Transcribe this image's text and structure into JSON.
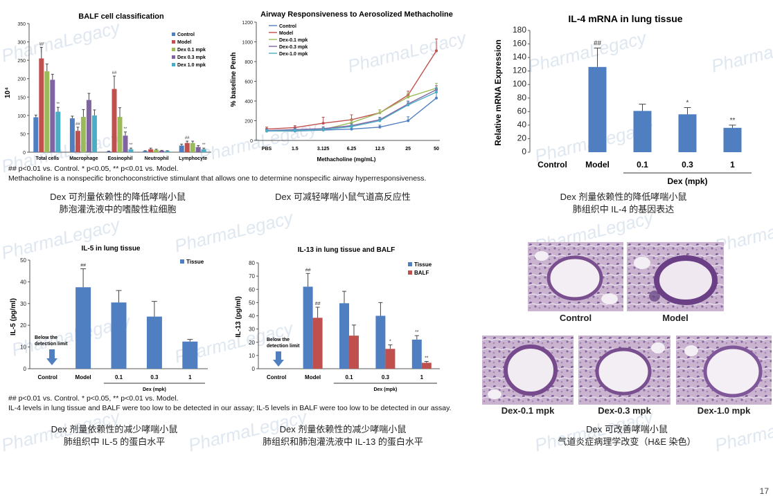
{
  "watermark": "PharmaLegacy",
  "page_number": "17",
  "notes": {
    "top_sig": "## p<0.01 vs. Control. * p<0.05, ** p<0.01 vs. Model.",
    "top_methacholine": "Methacholine is a nonspecific bronchoconstrictive stimulant that allows one to determine nonspecific airway hyperresponsiveness.",
    "bottom_sig": "## p<0.01 vs. Control. * p<0.05, ** p<0.01 vs. Model.",
    "bottom_il": "IL-4 levels in lung tissue and BALF were too low to be detected in our assay; IL-5 levels in BALF were too low to be detected in our assay."
  },
  "captions": {
    "balf": [
      "Dex 可剂量依赖性的降低哮喘小鼠",
      "肺泡灌洗液中的嗜酸性粒细胞"
    ],
    "airway": [
      "Dex 可减轻哮喘小鼠气道高反应性"
    ],
    "il4": [
      "Dex 剂量依赖性的降低哮喘小鼠",
      "肺组织中 IL-4 的基因表达"
    ],
    "il5": [
      "Dex 剂量依赖性的减少哮喘小鼠",
      "肺组织中 IL-5 的蛋白水平"
    ],
    "il13": [
      "Dex 剂量依赖性的减少哮喘小鼠",
      "肺组织和肺泡灌洗液中 IL-13 的蛋白水平"
    ],
    "histo": [
      "Dex 可改善哮喘小鼠",
      "气道炎症病理学改变（H&E 染色）"
    ]
  },
  "histology": {
    "labels": [
      "Control",
      "Model",
      "Dex-0.1 mpk",
      "Dex-0.3 mpk",
      "Dex-1.0 mpk"
    ]
  },
  "colors": {
    "control": "#4f7fc1",
    "model": "#c0504d",
    "dex01": "#9bbb59",
    "dex03": "#8064a2",
    "dex10": "#4bacc6",
    "tissue": "#4f7fc1",
    "balf": "#c0504d"
  },
  "chart_data": [
    {
      "id": "balf",
      "type": "bar",
      "title": "BALF cell classification",
      "ylabel": "10⁴",
      "ylim": [
        0,
        350
      ],
      "yticks": [
        0,
        50,
        100,
        150,
        200,
        250,
        300,
        350
      ],
      "categories": [
        "Total cells",
        "Macrophage",
        "Eosinophil",
        "Neutrophil",
        "Lymphocyte"
      ],
      "series": [
        {
          "name": "Control",
          "values": [
            95,
            92,
            2,
            3,
            18
          ],
          "err": [
            6,
            6,
            1,
            1,
            4
          ],
          "sig": [
            "",
            "",
            "",
            "",
            ""
          ]
        },
        {
          "name": "Model",
          "values": [
            255,
            58,
            172,
            8,
            25
          ],
          "err": [
            30,
            10,
            35,
            3,
            5
          ],
          "sig": [
            "##",
            "##",
            "##",
            "",
            "##"
          ]
        },
        {
          "name": "Dex 0.1 mpk",
          "values": [
            220,
            96,
            96,
            6,
            25
          ],
          "err": [
            20,
            20,
            25,
            2,
            5
          ],
          "sig": [
            "",
            "",
            "",
            "",
            ""
          ]
        },
        {
          "name": "Dex 0.3 mpk",
          "values": [
            197,
            142,
            45,
            4,
            14
          ],
          "err": [
            15,
            18,
            10,
            1,
            4
          ],
          "sig": [
            "",
            "",
            "**",
            "",
            ""
          ]
        },
        {
          "name": "Dex 1.0 mpk",
          "values": [
            110,
            100,
            8,
            3,
            8
          ],
          "err": [
            12,
            15,
            3,
            1,
            3
          ],
          "sig": [
            "**",
            "",
            "**",
            "",
            "**"
          ]
        }
      ]
    },
    {
      "id": "airway",
      "type": "line",
      "title": "Airway Responsiveness to Aerosolized Methacholine",
      "xlabel": "Methacholine (mg/mL)",
      "ylabel": "% baseline Penh",
      "ylim": [
        0,
        1200
      ],
      "yticks": [
        0,
        200,
        400,
        600,
        800,
        1000,
        1200
      ],
      "categories": [
        "PBS",
        "1.5",
        "3.125",
        "6.25",
        "12.5",
        "25",
        "50"
      ],
      "series": [
        {
          "name": "Control",
          "values": [
            95,
            95,
            105,
            115,
            135,
            200,
            430
          ],
          "err": [
            15,
            15,
            15,
            20,
            20,
            40,
            80
          ]
        },
        {
          "name": "Model",
          "values": [
            115,
            130,
            175,
            210,
            280,
            460,
            910
          ],
          "err": [
            20,
            20,
            60,
            50,
            30,
            40,
            120
          ]
        },
        {
          "name": "Dex-0.1 mpk",
          "values": [
            95,
            100,
            110,
            180,
            280,
            440,
            530
          ],
          "err": [
            15,
            15,
            20,
            30,
            30,
            40,
            50
          ]
        },
        {
          "name": "Dex-0.3 mpk",
          "values": [
            100,
            110,
            120,
            150,
            210,
            370,
            515
          ],
          "err": [
            15,
            15,
            20,
            20,
            25,
            30,
            40
          ]
        },
        {
          "name": "Dex-1.0 mpk",
          "values": [
            95,
            100,
            110,
            140,
            200,
            360,
            490
          ],
          "err": [
            15,
            15,
            20,
            20,
            25,
            30,
            40
          ]
        }
      ]
    },
    {
      "id": "il4",
      "type": "bar",
      "title": "IL-4 mRNA in lung tissue",
      "ylabel": "Relative mRNA Expression",
      "xlabel": "Dex (mpk)",
      "ylim": [
        0,
        180
      ],
      "yticks": [
        0,
        20,
        40,
        60,
        80,
        100,
        120,
        140,
        160,
        180
      ],
      "categories": [
        "Control",
        "Model",
        "0.1",
        "0.3",
        "1"
      ],
      "values": [
        0,
        126,
        61,
        56,
        36
      ],
      "err": [
        0,
        28,
        10,
        10,
        4
      ],
      "sig": [
        "",
        "##",
        "",
        "*",
        "**"
      ]
    },
    {
      "id": "il5",
      "type": "bar",
      "title": "IL-5 in lung tissue",
      "ylabel": "IL-5 (pg/ml)",
      "xlabel": "Dex (mpk)",
      "ylim": [
        0,
        50
      ],
      "yticks": [
        0,
        10,
        20,
        30,
        40,
        50
      ],
      "legend": [
        "Tissue"
      ],
      "categories": [
        "Control",
        "Model",
        "0.1",
        "0.3",
        "1"
      ],
      "values": [
        0,
        37.5,
        30.5,
        24,
        12.5
      ],
      "err": [
        0,
        8.5,
        5.5,
        7,
        1
      ],
      "sig": [
        "",
        "##",
        "",
        "",
        ""
      ],
      "annotation": "Below the detection limit"
    },
    {
      "id": "il13",
      "type": "bar",
      "title": "IL-13 in lung tissue and BALF",
      "ylabel": "IL-13 (pg/ml)",
      "xlabel": "Dex (mpk)",
      "ylim": [
        0,
        80
      ],
      "yticks": [
        0,
        10,
        20,
        30,
        40,
        50,
        60,
        70,
        80
      ],
      "categories": [
        "Control",
        "Model",
        "0.1",
        "0.3",
        "1"
      ],
      "series": [
        {
          "name": "Tissue",
          "values": [
            0,
            62,
            49.5,
            40,
            22
          ],
          "err": [
            0,
            10,
            9,
            10,
            3
          ],
          "sig": [
            "",
            "##",
            "",
            "",
            "**"
          ]
        },
        {
          "name": "BALF",
          "values": [
            0,
            38.5,
            25,
            15,
            4.5
          ],
          "err": [
            0,
            8,
            8,
            3,
            1
          ],
          "sig": [
            "",
            "##",
            "",
            "*",
            "**"
          ]
        }
      ],
      "annotation": "Below the detection limit"
    }
  ]
}
